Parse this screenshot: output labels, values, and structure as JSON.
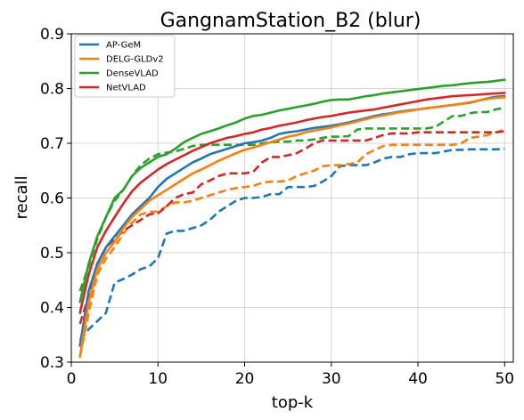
{
  "chart_data": {
    "type": "line",
    "title": "GangnamStation_B2 (blur)",
    "xlabel": "top-k",
    "ylabel": "recall",
    "xlim": [
      0,
      51
    ],
    "ylim": [
      0.3,
      0.9
    ],
    "xticks": [
      "0",
      "10",
      "20",
      "30",
      "40",
      "50"
    ],
    "yticks": [
      "0.3",
      "0.4",
      "0.5",
      "0.6",
      "0.7",
      "0.8",
      "0.9"
    ],
    "grid": true,
    "legend_position": "top-left",
    "series": [
      {
        "name": "AP-GeM",
        "color": "#1f77b4",
        "style": "solid",
        "x": [
          1,
          2,
          3,
          4,
          5,
          6,
          7,
          8,
          9,
          10,
          11,
          12,
          13,
          14,
          15,
          16,
          17,
          18,
          19,
          20,
          21,
          22,
          23,
          24,
          25,
          26,
          27,
          28,
          29,
          30,
          31,
          32,
          33,
          34,
          35,
          36,
          37,
          38,
          39,
          40,
          41,
          42,
          43,
          44,
          45,
          46,
          47,
          48,
          49,
          50
        ],
        "values": [
          0.33,
          0.43,
          0.48,
          0.51,
          0.53,
          0.55,
          0.57,
          0.585,
          0.6,
          0.62,
          0.635,
          0.645,
          0.655,
          0.665,
          0.672,
          0.68,
          0.685,
          0.69,
          0.695,
          0.7,
          0.702,
          0.705,
          0.71,
          0.717,
          0.72,
          0.722,
          0.725,
          0.728,
          0.73,
          0.732,
          0.735,
          0.738,
          0.742,
          0.746,
          0.75,
          0.753,
          0.755,
          0.758,
          0.76,
          0.762,
          0.764,
          0.766,
          0.768,
          0.77,
          0.772,
          0.774,
          0.778,
          0.782,
          0.785,
          0.786
        ]
      },
      {
        "name": "DELG-GLDv2",
        "color": "#ff7f0e",
        "style": "solid",
        "x": [
          1,
          2,
          3,
          4,
          5,
          6,
          7,
          8,
          9,
          10,
          11,
          12,
          13,
          14,
          15,
          16,
          17,
          18,
          19,
          20,
          21,
          22,
          23,
          24,
          25,
          26,
          27,
          28,
          29,
          30,
          31,
          32,
          33,
          34,
          35,
          36,
          37,
          38,
          39,
          40,
          41,
          42,
          43,
          44,
          45,
          46,
          47,
          48,
          49,
          50
        ],
        "values": [
          0.31,
          0.41,
          0.47,
          0.5,
          0.52,
          0.545,
          0.565,
          0.58,
          0.595,
          0.605,
          0.615,
          0.625,
          0.635,
          0.645,
          0.652,
          0.66,
          0.668,
          0.675,
          0.682,
          0.688,
          0.692,
          0.697,
          0.702,
          0.707,
          0.712,
          0.715,
          0.72,
          0.723,
          0.726,
          0.729,
          0.733,
          0.736,
          0.74,
          0.744,
          0.748,
          0.751,
          0.754,
          0.757,
          0.759,
          0.762,
          0.764,
          0.766,
          0.768,
          0.77,
          0.772,
          0.775,
          0.778,
          0.781,
          0.783,
          0.784
        ]
      },
      {
        "name": "DenseVLAD",
        "color": "#2ca02c",
        "style": "solid",
        "x": [
          1,
          2,
          3,
          4,
          5,
          6,
          7,
          8,
          9,
          10,
          11,
          12,
          13,
          14,
          15,
          16,
          17,
          18,
          19,
          20,
          21,
          22,
          23,
          24,
          25,
          26,
          27,
          28,
          29,
          30,
          31,
          32,
          33,
          34,
          35,
          36,
          37,
          38,
          39,
          40,
          41,
          42,
          43,
          44,
          45,
          46,
          47,
          48,
          49,
          50
        ],
        "values": [
          0.41,
          0.48,
          0.53,
          0.565,
          0.6,
          0.615,
          0.64,
          0.655,
          0.665,
          0.675,
          0.68,
          0.69,
          0.702,
          0.71,
          0.717,
          0.722,
          0.727,
          0.733,
          0.738,
          0.745,
          0.75,
          0.752,
          0.756,
          0.76,
          0.763,
          0.766,
          0.769,
          0.772,
          0.776,
          0.779,
          0.78,
          0.78,
          0.783,
          0.786,
          0.788,
          0.791,
          0.793,
          0.795,
          0.797,
          0.799,
          0.801,
          0.803,
          0.805,
          0.806,
          0.808,
          0.81,
          0.811,
          0.812,
          0.814,
          0.816
        ]
      },
      {
        "name": "NetVLAD",
        "color": "#d62728",
        "style": "solid",
        "x": [
          1,
          2,
          3,
          4,
          5,
          6,
          7,
          8,
          9,
          10,
          11,
          12,
          13,
          14,
          15,
          16,
          17,
          18,
          19,
          20,
          21,
          22,
          23,
          24,
          25,
          26,
          27,
          28,
          29,
          30,
          31,
          32,
          33,
          34,
          35,
          36,
          37,
          38,
          39,
          40,
          41,
          42,
          43,
          44,
          45,
          46,
          47,
          48,
          49,
          50
        ],
        "values": [
          0.39,
          0.46,
          0.51,
          0.54,
          0.565,
          0.59,
          0.612,
          0.628,
          0.64,
          0.652,
          0.662,
          0.67,
          0.678,
          0.686,
          0.693,
          0.7,
          0.705,
          0.71,
          0.713,
          0.717,
          0.72,
          0.725,
          0.728,
          0.732,
          0.735,
          0.738,
          0.742,
          0.745,
          0.748,
          0.75,
          0.753,
          0.756,
          0.758,
          0.76,
          0.762,
          0.765,
          0.768,
          0.771,
          0.774,
          0.777,
          0.78,
          0.782,
          0.784,
          0.786,
          0.787,
          0.788,
          0.789,
          0.79,
          0.791,
          0.792
        ]
      },
      {
        "name": "",
        "color": "#1f77b4",
        "style": "dashed",
        "x": [
          1,
          2,
          3,
          4,
          5,
          6,
          7,
          8,
          9,
          10,
          11,
          12,
          13,
          14,
          15,
          16,
          17,
          18,
          19,
          20,
          21,
          22,
          23,
          24,
          25,
          26,
          27,
          28,
          29,
          30,
          31,
          32,
          33,
          34,
          35,
          36,
          37,
          38,
          39,
          40,
          41,
          42,
          43,
          44,
          45,
          46,
          47,
          48,
          49,
          50
        ],
        "values": [
          0.34,
          0.36,
          0.375,
          0.39,
          0.445,
          0.452,
          0.46,
          0.47,
          0.475,
          0.49,
          0.535,
          0.54,
          0.54,
          0.545,
          0.55,
          0.56,
          0.575,
          0.585,
          0.595,
          0.6,
          0.6,
          0.602,
          0.607,
          0.607,
          0.62,
          0.62,
          0.62,
          0.622,
          0.63,
          0.64,
          0.658,
          0.66,
          0.66,
          0.66,
          0.665,
          0.672,
          0.675,
          0.675,
          0.68,
          0.682,
          0.682,
          0.682,
          0.685,
          0.688,
          0.688,
          0.689,
          0.689,
          0.689,
          0.689,
          0.69
        ]
      },
      {
        "name": "",
        "color": "#ff7f0e",
        "style": "dashed",
        "x": [
          1,
          2,
          3,
          4,
          5,
          6,
          7,
          8,
          9,
          10,
          11,
          12,
          13,
          14,
          15,
          16,
          17,
          18,
          19,
          20,
          21,
          22,
          23,
          24,
          25,
          26,
          27,
          28,
          29,
          30,
          31,
          32,
          33,
          34,
          35,
          36,
          37,
          38,
          39,
          40,
          41,
          42,
          43,
          44,
          45,
          46,
          47,
          48,
          49,
          50
        ],
        "values": [
          0.31,
          0.39,
          0.46,
          0.49,
          0.51,
          0.535,
          0.555,
          0.57,
          0.575,
          0.575,
          0.585,
          0.592,
          0.592,
          0.595,
          0.6,
          0.605,
          0.61,
          0.615,
          0.618,
          0.62,
          0.622,
          0.628,
          0.63,
          0.63,
          0.632,
          0.64,
          0.645,
          0.65,
          0.658,
          0.66,
          0.66,
          0.662,
          0.665,
          0.68,
          0.688,
          0.695,
          0.697,
          0.697,
          0.697,
          0.697,
          0.697,
          0.697,
          0.697,
          0.697,
          0.7,
          0.71,
          0.712,
          0.715,
          0.72,
          0.725
        ]
      },
      {
        "name": "",
        "color": "#2ca02c",
        "style": "dashed",
        "x": [
          1,
          2,
          3,
          4,
          5,
          6,
          7,
          8,
          9,
          10,
          11,
          12,
          13,
          14,
          15,
          16,
          17,
          18,
          19,
          20,
          21,
          22,
          23,
          24,
          25,
          26,
          27,
          28,
          29,
          30,
          31,
          32,
          33,
          34,
          35,
          36,
          37,
          38,
          39,
          40,
          41,
          42,
          43,
          44,
          45,
          46,
          47,
          48,
          49,
          50
        ],
        "values": [
          0.43,
          0.475,
          0.525,
          0.565,
          0.595,
          0.615,
          0.64,
          0.66,
          0.672,
          0.68,
          0.683,
          0.685,
          0.69,
          0.695,
          0.697,
          0.697,
          0.697,
          0.697,
          0.697,
          0.697,
          0.697,
          0.7,
          0.702,
          0.703,
          0.703,
          0.705,
          0.705,
          0.707,
          0.71,
          0.712,
          0.712,
          0.713,
          0.725,
          0.727,
          0.727,
          0.727,
          0.727,
          0.727,
          0.727,
          0.727,
          0.727,
          0.73,
          0.74,
          0.75,
          0.75,
          0.755,
          0.757,
          0.757,
          0.762,
          0.765
        ]
      },
      {
        "name": "",
        "color": "#d62728",
        "style": "dashed",
        "x": [
          1,
          2,
          3,
          4,
          5,
          6,
          7,
          8,
          9,
          10,
          11,
          12,
          13,
          14,
          15,
          16,
          17,
          18,
          19,
          20,
          21,
          22,
          23,
          24,
          25,
          26,
          27,
          28,
          29,
          30,
          31,
          32,
          33,
          34,
          35,
          36,
          37,
          38,
          39,
          40,
          41,
          42,
          43,
          44,
          45,
          46,
          47,
          48,
          49,
          50
        ],
        "values": [
          0.37,
          0.42,
          0.48,
          0.51,
          0.525,
          0.54,
          0.55,
          0.56,
          0.57,
          0.572,
          0.585,
          0.6,
          0.607,
          0.61,
          0.625,
          0.632,
          0.64,
          0.645,
          0.645,
          0.645,
          0.648,
          0.665,
          0.675,
          0.675,
          0.678,
          0.682,
          0.69,
          0.7,
          0.705,
          0.705,
          0.705,
          0.705,
          0.705,
          0.705,
          0.71,
          0.715,
          0.718,
          0.718,
          0.718,
          0.72,
          0.72,
          0.72,
          0.72,
          0.72,
          0.72,
          0.72,
          0.72,
          0.72,
          0.72,
          0.722
        ]
      }
    ]
  }
}
